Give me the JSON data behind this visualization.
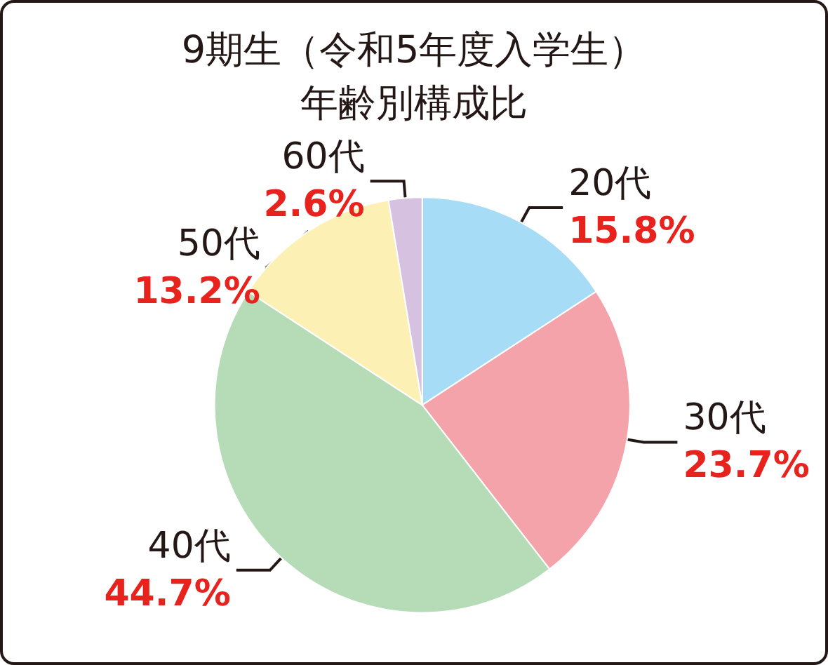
{
  "chart_data": {
    "type": "pie",
    "title": "9期生（令和5年度入学生）",
    "subtitle": "年齢別構成比",
    "value_labels": [
      "15.8%",
      "23.7%",
      "44.7%",
      "13.2%",
      "2.6%"
    ],
    "categories": [
      "20代",
      "30代",
      "40代",
      "50代",
      "60代"
    ],
    "values": [
      15.8,
      23.7,
      44.7,
      13.2,
      2.6
    ],
    "colors": [
      "#a6dcf6",
      "#f5a3aa",
      "#b6dcb7",
      "#fdf0b5",
      "#d7c1e0"
    ],
    "data_labels": true,
    "legend": false
  }
}
